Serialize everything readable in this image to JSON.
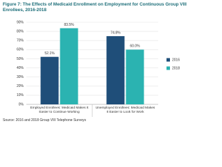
{
  "chart_data": {
    "type": "bar",
    "title": "Figure 7: The Effects of Medicaid Enrollment on Employment for Continuous Group VIII Enrollees, 2016-2018",
    "categories": [
      "Employed Enrollees: Medicaid Makes It Easier to Continue Working",
      "Unemployed Enrollees: Medicaid Makes It Easier to Look for Work"
    ],
    "series": [
      {
        "name": "2016",
        "color": "#1f4e79",
        "values": [
          52.1,
          74.8
        ],
        "value_labels": [
          "52.1%",
          "74.8%"
        ]
      },
      {
        "name": "2018",
        "color": "#2bb3b1",
        "values": [
          83.5,
          60.0
        ],
        "value_labels": [
          "83.5%",
          "60.0%"
        ]
      }
    ],
    "ylim": [
      0,
      90
    ],
    "yticks": [
      {
        "value": 0,
        "label": "0%"
      },
      {
        "value": 10,
        "label": "10%"
      },
      {
        "value": 20,
        "label": "20%"
      },
      {
        "value": 30,
        "label": "30%"
      },
      {
        "value": 40,
        "label": "40%"
      },
      {
        "value": 50,
        "label": "50%"
      },
      {
        "value": 60,
        "label": "60%"
      },
      {
        "value": 70,
        "label": "70%"
      },
      {
        "value": 80,
        "label": "80%"
      },
      {
        "value": 90,
        "label": "90%"
      }
    ],
    "grid": true,
    "legend": "right",
    "source": "Source: 2016 and 2018 Group VIII Telephone Surveys"
  }
}
